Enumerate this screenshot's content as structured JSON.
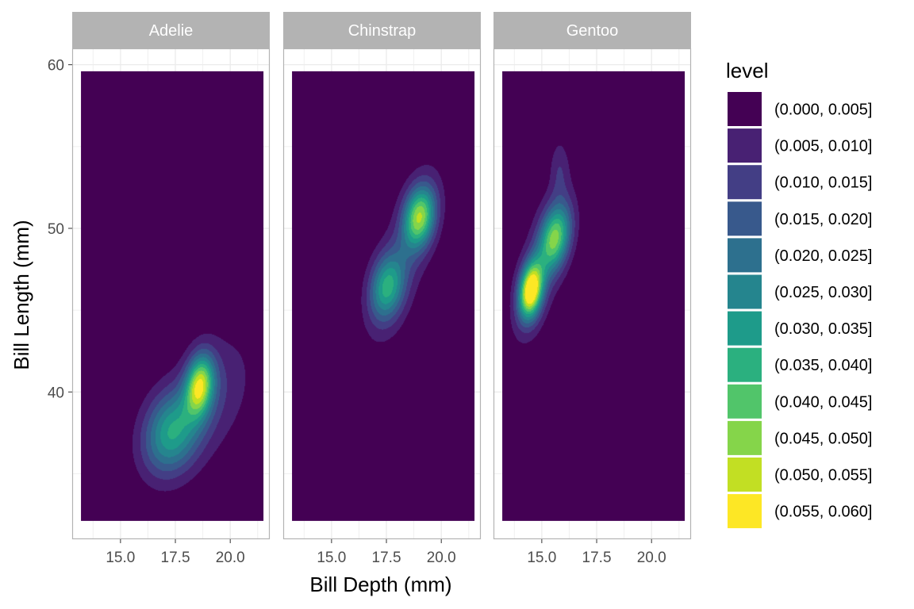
{
  "chart_data": {
    "type": "contour",
    "facets": [
      "Adelie",
      "Chinstrap",
      "Gentoo"
    ],
    "xlabel": "Bill Depth (mm)",
    "ylabel": "Bill Length (mm)",
    "xlim": [
      12.8,
      21.8
    ],
    "ylim": [
      31.0,
      61.0
    ],
    "x_ticks": [
      "15.0",
      "17.5",
      "20.0"
    ],
    "y_ticks": [
      "40",
      "50",
      "60"
    ],
    "density_region": {
      "x": [
        13.2,
        21.5
      ],
      "y": [
        32.1,
        59.6
      ]
    },
    "legend": {
      "title": "level",
      "position": "right",
      "items": [
        {
          "label": "(0.000, 0.005]",
          "color": "#440154"
        },
        {
          "label": "(0.005, 0.010]",
          "color": "#482173"
        },
        {
          "label": "(0.010, 0.015]",
          "color": "#433E85"
        },
        {
          "label": "(0.015, 0.020]",
          "color": "#38598C"
        },
        {
          "label": "(0.020, 0.025]",
          "color": "#2D708E"
        },
        {
          "label": "(0.025, 0.030]",
          "color": "#25858E"
        },
        {
          "label": "(0.030, 0.035]",
          "color": "#1E9B8A"
        },
        {
          "label": "(0.035, 0.040]",
          "color": "#2BB07F"
        },
        {
          "label": "(0.040, 0.045]",
          "color": "#51C56A"
        },
        {
          "label": "(0.045, 0.050]",
          "color": "#85D54A"
        },
        {
          "label": "(0.050, 0.055]",
          "color": "#C2DF23"
        },
        {
          "label": "(0.055, 0.060]",
          "color": "#FDE725"
        }
      ]
    },
    "peaks": [
      {
        "facet": "Adelie",
        "components": [
          {
            "x": 18.6,
            "y": 40.4,
            "sx": 0.45,
            "sy": 1.3,
            "rho": 0.2,
            "w": 0.046
          },
          {
            "x": 17.3,
            "y": 37.5,
            "sx": 0.9,
            "sy": 1.8,
            "rho": 0.2,
            "w": 0.033
          },
          {
            "x": 19.2,
            "y": 39.8,
            "sx": 1.25,
            "sy": 2.6,
            "rho": 0.35,
            "w": 0.01
          }
        ]
      },
      {
        "facet": "Chinstrap",
        "components": [
          {
            "x": 19.0,
            "y": 50.7,
            "sx": 0.5,
            "sy": 1.3,
            "rho": 0.2,
            "w": 0.043
          },
          {
            "x": 17.5,
            "y": 46.4,
            "sx": 0.55,
            "sy": 1.4,
            "rho": 0.2,
            "w": 0.03
          },
          {
            "x": 18.3,
            "y": 48.3,
            "sx": 1.05,
            "sy": 3.4,
            "rho": 0.68,
            "w": 0.011
          }
        ]
      },
      {
        "facet": "Gentoo",
        "components": [
          {
            "x": 14.5,
            "y": 46.2,
            "sx": 0.38,
            "sy": 1.2,
            "rho": 0.25,
            "w": 0.06
          },
          {
            "x": 15.6,
            "y": 49.4,
            "sx": 0.5,
            "sy": 1.4,
            "rho": 0.3,
            "w": 0.04
          },
          {
            "x": 15.0,
            "y": 47.8,
            "sx": 0.9,
            "sy": 3.3,
            "rho": 0.65,
            "w": 0.01
          },
          {
            "x": 15.8,
            "y": 53.6,
            "sx": 0.3,
            "sy": 1.3,
            "rho": 0.0,
            "w": 0.008
          }
        ]
      }
    ]
  }
}
